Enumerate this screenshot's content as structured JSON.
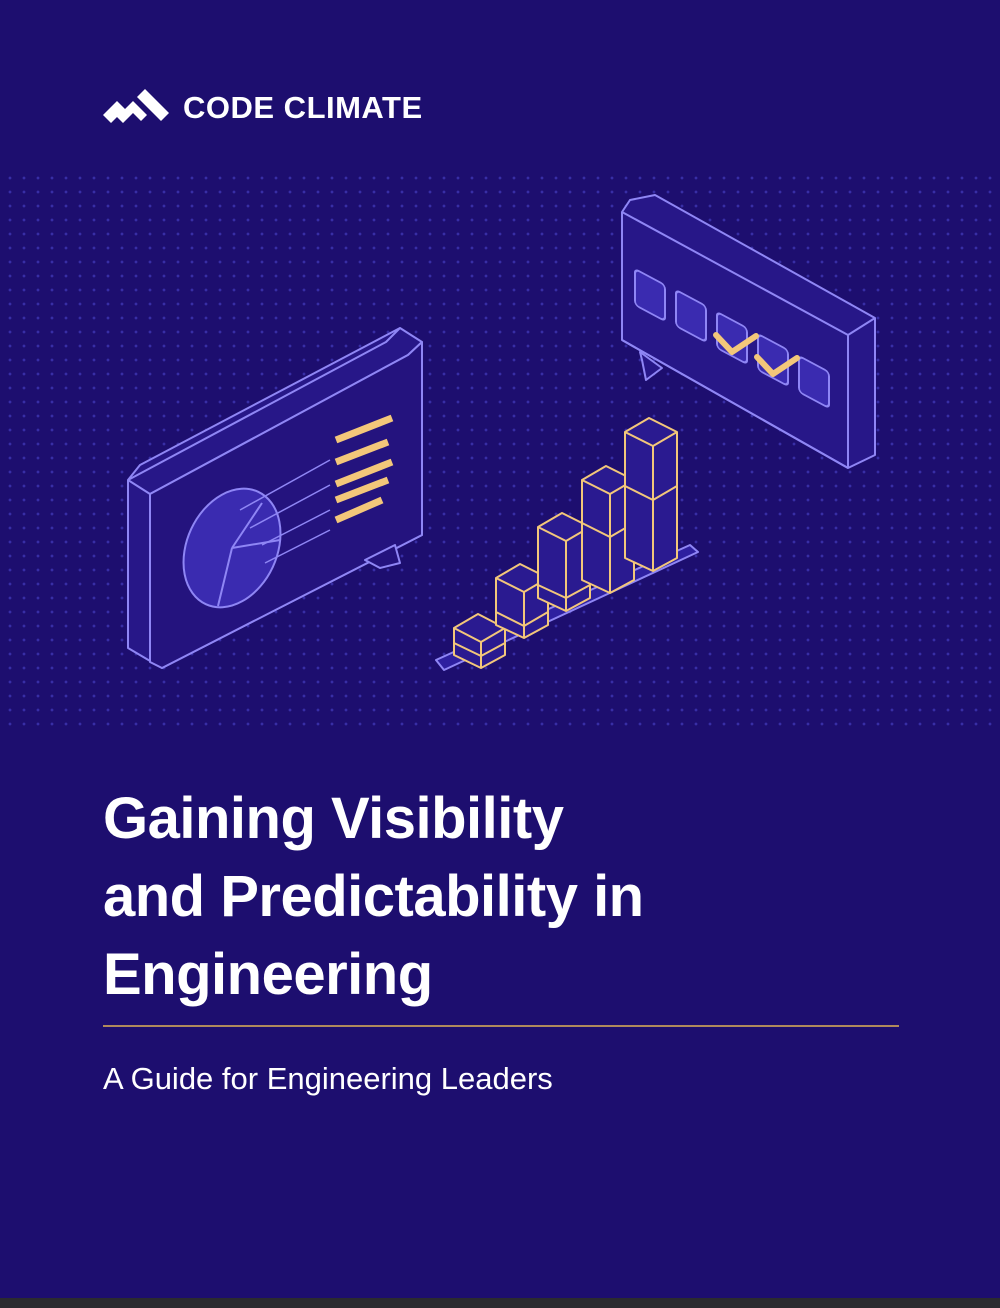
{
  "brand": {
    "name": "CODE CLIMATE",
    "logo_icon": "code-climate-mountain-icon"
  },
  "cover": {
    "title_lines": [
      "Gaining Visibility",
      "and Predictability in",
      "Engineering"
    ],
    "subtitle": "A Guide for Engineering Leaders"
  },
  "colors": {
    "background": "#1d0e6f",
    "accent_gold": "#f3c77a",
    "outline_violet": "#8f86f5",
    "rule": "#b08a5c"
  },
  "illustration": {
    "items": [
      "pie-chart-board-icon",
      "bar-chart-icon",
      "checklist-board-icon"
    ]
  }
}
